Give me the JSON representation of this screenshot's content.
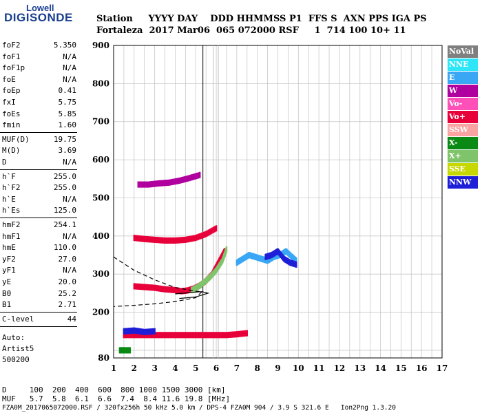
{
  "logo": {
    "top": "Lowell",
    "bottom": "DIGISONDE"
  },
  "header": {
    "line1": "Station     YYYY DAY    DDD HHMMSS P1  FFS S  AXN PPS IGA PS",
    "line2": "Fortaleza  2017 Mar06  065 072000 RSF     1  714 100 10+ 11"
  },
  "params": [
    {
      "name": "foF2",
      "value": "5.350"
    },
    {
      "name": "foF1",
      "value": "N/A"
    },
    {
      "name": "foF1p",
      "value": "N/A"
    },
    {
      "name": "foE",
      "value": "N/A"
    },
    {
      "name": "foEp",
      "value": "0.41"
    },
    {
      "name": "fxI",
      "value": "5.75"
    },
    {
      "name": "foEs",
      "value": "5.85"
    },
    {
      "name": "fmin",
      "value": "1.60"
    },
    {
      "name": "MUF(D)",
      "value": "19.75"
    },
    {
      "name": "M(D)",
      "value": "3.69"
    },
    {
      "name": "D",
      "value": "N/A"
    },
    {
      "name": "h`F",
      "value": "255.0"
    },
    {
      "name": "h`F2",
      "value": "255.0"
    },
    {
      "name": "h`E",
      "value": "N/A"
    },
    {
      "name": "h`Es",
      "value": "125.0"
    },
    {
      "name": "hmF2",
      "value": "254.1"
    },
    {
      "name": "hmF1",
      "value": "N/A"
    },
    {
      "name": "hmE",
      "value": "110.0"
    },
    {
      "name": "yF2",
      "value": "27.0"
    },
    {
      "name": "yF1",
      "value": "N/A"
    },
    {
      "name": "yE",
      "value": "20.0"
    },
    {
      "name": "B0",
      "value": "25.2"
    },
    {
      "name": "B1",
      "value": "2.71"
    },
    {
      "name": "C-level",
      "value": "44"
    }
  ],
  "auto": {
    "line1": "Auto:",
    "line2": "Artist5",
    "line3": "500200"
  },
  "legend": [
    {
      "label": "NoVal",
      "bg": "#7f7f7f",
      "fg": "#ffffff"
    },
    {
      "label": "NNE",
      "bg": "#2ee6f7",
      "fg": "#ffffff"
    },
    {
      "label": "E",
      "bg": "#3aa7f5",
      "fg": "#ffffff"
    },
    {
      "label": "W",
      "bg": "#b0009e",
      "fg": "#ffffff"
    },
    {
      "label": "Vo-",
      "bg": "#ff4fb8",
      "fg": "#ffffff"
    },
    {
      "label": "Vo+",
      "bg": "#e8003a",
      "fg": "#ffffff"
    },
    {
      "label": "SSW",
      "bg": "#f9a3a3",
      "fg": "#ffffff"
    },
    {
      "label": "X-",
      "bg": "#0a8a14",
      "fg": "#ffffff"
    },
    {
      "label": "X+",
      "bg": "#7fc46a",
      "fg": "#ffffff"
    },
    {
      "label": "SSE",
      "bg": "#c7d800",
      "fg": "#ffffff"
    },
    {
      "label": "NNW",
      "bg": "#1f1fd8",
      "fg": "#ffffff"
    }
  ],
  "bottom": {
    "line1": "D     100  200  400  600  800 1000 1500 3000 [km]",
    "line2": "MUF   5.7  5.8  6.1  6.6  7.4  8.4 11.6 19.8 [MHz]",
    "line3": "FZA0M_2017065072000.RSF / 320fx256h 50 kHz 5.0 km / DPS-4 FZA0M 904 / 3.9 S 321.6 E   Ion2Png 1.3.20"
  },
  "chart_data": {
    "type": "scatter",
    "x_ticks": [
      "1",
      "2",
      "3",
      "4",
      "5",
      "6",
      "7",
      "8",
      "9",
      "10",
      "11",
      "12",
      "13",
      "14",
      "15",
      "16",
      "17"
    ],
    "y_ticks": [
      "80",
      "200",
      "300",
      "400",
      "500",
      "600",
      "700",
      "800",
      "900"
    ],
    "xlim": [
      1,
      17
    ],
    "ylim": [
      80,
      900
    ],
    "y_grid": [
      80,
      100,
      200,
      300,
      400,
      500,
      600,
      700,
      800,
      900
    ],
    "grid": true,
    "vertical_lines": [
      {
        "x": 5.35,
        "color": "#000000"
      },
      {
        "x": 6.1,
        "color": "#c0c0c0"
      },
      {
        "x": 5.85,
        "color": "#c0c0c0"
      }
    ],
    "traces": [
      {
        "name": "F2-echo",
        "color": "#e8003a",
        "points": [
          [
            2.0,
            268
          ],
          [
            2.5,
            266
          ],
          [
            3.0,
            264
          ],
          [
            3.5,
            260
          ],
          [
            4.0,
            258
          ],
          [
            4.3,
            255
          ],
          [
            4.6,
            257
          ],
          [
            4.9,
            262
          ],
          [
            5.2,
            270
          ],
          [
            5.5,
            282
          ],
          [
            5.8,
            300
          ],
          [
            6.0,
            320
          ],
          [
            6.2,
            340
          ],
          [
            6.4,
            360
          ]
        ]
      },
      {
        "name": "F2-x",
        "color": "#7fc46a",
        "points": [
          [
            4.8,
            258
          ],
          [
            5.1,
            266
          ],
          [
            5.4,
            278
          ],
          [
            5.7,
            292
          ],
          [
            6.0,
            310
          ],
          [
            6.3,
            335
          ],
          [
            6.5,
            365
          ]
        ]
      },
      {
        "name": "F2-second-hop",
        "color": "#e8003a",
        "points": [
          [
            2.0,
            395
          ],
          [
            2.5,
            392
          ],
          [
            3.0,
            390
          ],
          [
            3.5,
            388
          ],
          [
            4.0,
            388
          ],
          [
            4.5,
            390
          ],
          [
            5.0,
            395
          ],
          [
            5.5,
            405
          ],
          [
            6.0,
            420
          ]
        ]
      },
      {
        "name": "F2-third-hop",
        "color": "#b0009e",
        "points": [
          [
            2.2,
            535
          ],
          [
            2.7,
            535
          ],
          [
            3.2,
            538
          ],
          [
            3.7,
            540
          ],
          [
            4.2,
            545
          ],
          [
            4.7,
            552
          ],
          [
            5.2,
            560
          ]
        ]
      },
      {
        "name": "Es-layer",
        "color": "#e8003a",
        "points": [
          [
            1.5,
            140
          ],
          [
            2.0,
            140
          ],
          [
            2.5,
            140
          ],
          [
            3.0,
            140
          ],
          [
            3.5,
            140
          ],
          [
            4.0,
            140
          ],
          [
            4.5,
            140
          ],
          [
            5.0,
            140
          ],
          [
            5.5,
            140
          ],
          [
            6.0,
            140
          ],
          [
            6.5,
            140
          ],
          [
            7.0,
            142
          ],
          [
            7.5,
            145
          ]
        ]
      },
      {
        "name": "Es-second",
        "color": "#1f1fd8",
        "points": [
          [
            1.5,
            150
          ],
          [
            2.0,
            152
          ],
          [
            2.5,
            148
          ],
          [
            3.0,
            150
          ]
        ]
      },
      {
        "name": "Es-low",
        "color": "#0a8a14",
        "points": [
          [
            1.3,
            100
          ],
          [
            1.5,
            100
          ],
          [
            1.8,
            100
          ]
        ]
      },
      {
        "name": "spread-F",
        "color": "#3aa7f5",
        "points": [
          [
            7.0,
            330
          ],
          [
            7.3,
            340
          ],
          [
            7.6,
            350
          ],
          [
            7.9,
            345
          ],
          [
            8.2,
            340
          ],
          [
            8.5,
            335
          ],
          [
            8.8,
            345
          ],
          [
            9.1,
            350
          ],
          [
            9.4,
            360
          ],
          [
            9.7,
            345
          ],
          [
            9.9,
            335
          ]
        ]
      },
      {
        "name": "spread-F-nnw",
        "color": "#1f1fd8",
        "points": [
          [
            8.4,
            345
          ],
          [
            8.7,
            350
          ],
          [
            9.0,
            360
          ],
          [
            9.3,
            340
          ],
          [
            9.6,
            330
          ],
          [
            9.9,
            325
          ]
        ]
      }
    ],
    "profile": {
      "dashed": [
        [
          1.0,
          345
        ],
        [
          2.0,
          310
        ],
        [
          3.0,
          285
        ],
        [
          4.0,
          265
        ],
        [
          5.0,
          255
        ],
        [
          5.3,
          254
        ],
        [
          5.0,
          238
        ],
        [
          4.0,
          228
        ],
        [
          3.0,
          222
        ],
        [
          2.0,
          218
        ],
        [
          1.0,
          215
        ]
      ],
      "solid": [
        [
          4.0,
          248
        ],
        [
          4.8,
          252
        ],
        [
          5.3,
          254
        ],
        [
          5.6,
          250
        ],
        [
          5.0,
          240
        ],
        [
          4.2,
          236
        ]
      ]
    }
  }
}
